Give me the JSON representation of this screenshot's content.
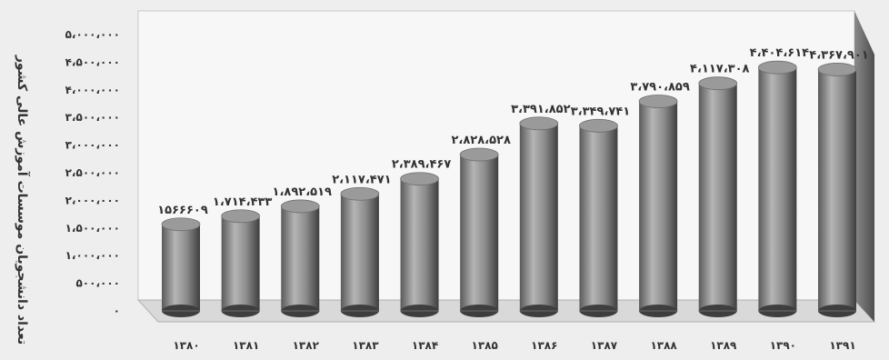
{
  "chart_data": {
    "type": "bar",
    "ylabel": "تعداد دانشجویان موسسات آموزش عالی کشور",
    "ylim": [
      0,
      5000000
    ],
    "yticks": [
      {
        "value": 0,
        "label": "۰"
      },
      {
        "value": 500000,
        "label": "۵۰۰،۰۰۰"
      },
      {
        "value": 1000000,
        "label": "۱،۰۰۰،۰۰۰"
      },
      {
        "value": 1500000,
        "label": "۱،۵۰۰،۰۰۰"
      },
      {
        "value": 2000000,
        "label": "۲،۰۰۰،۰۰۰"
      },
      {
        "value": 2500000,
        "label": "۲،۵۰۰،۰۰۰"
      },
      {
        "value": 3000000,
        "label": "۳،۰۰۰،۰۰۰"
      },
      {
        "value": 3500000,
        "label": "۳،۵۰۰،۰۰۰"
      },
      {
        "value": 4000000,
        "label": "۴،۰۰۰،۰۰۰"
      },
      {
        "value": 4500000,
        "label": "۴،۵۰۰،۰۰۰"
      },
      {
        "value": 5000000,
        "label": "۵،۰۰۰،۰۰۰"
      }
    ],
    "categories": [
      "۱۳۸۰",
      "۱۳۸۱",
      "۱۳۸۲",
      "۱۳۸۳",
      "۱۳۸۴",
      "۱۳۸۵",
      "۱۳۸۶",
      "۱۳۸۷",
      "۱۳۸۸",
      "۱۳۸۹",
      "۱۳۹۰",
      "۱۳۹۱"
    ],
    "values": [
      1566609,
      1714433,
      1892519,
      2117471,
      2389467,
      2828528,
      3391852,
      3349741,
      3790859,
      4117308,
      4404614,
      4367901
    ],
    "data_labels": [
      "۱۵۶۶۶۰۹",
      "۱،۷۱۴،۴۳۳",
      "۱،۸۹۲،۵۱۹",
      "۲،۱۱۷،۴۷۱",
      "۲،۳۸۹،۴۶۷",
      "۲،۸۲۸،۵۲۸",
      "۳،۳۹۱،۸۵۲",
      "۳،۳۴۹،۷۴۱",
      "۳،۷۹۰،۸۵۹",
      "۴،۱۱۷،۳۰۸",
      "۴،۴۰۴،۶۱۴",
      "۴،۳۶۷،۹۰۱"
    ],
    "grid": false,
    "legend": "none",
    "colors": {
      "cylinder_dark": "#4a4a4a",
      "cylinder_mid": "#8a8a8a",
      "cylinder_light": "#bdbdbd",
      "cylinder_top": "#9a9a9a",
      "wall": "#f7f7f7",
      "floor": "#d9d9d9",
      "side_wall": "#6e6e6e",
      "text": "#333333"
    }
  }
}
